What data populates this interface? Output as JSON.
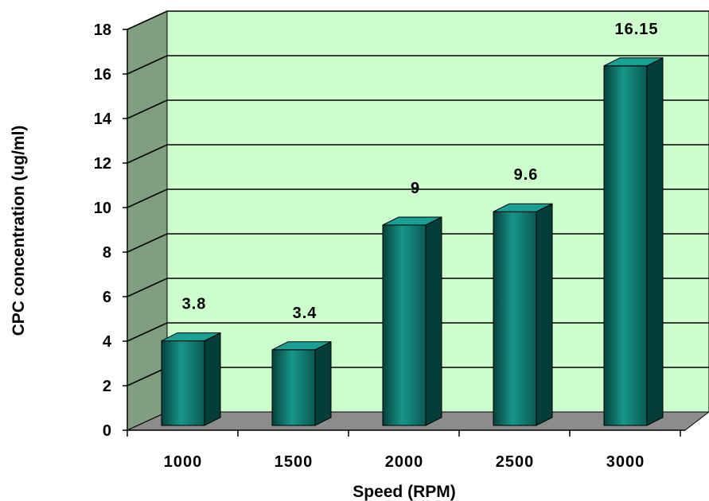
{
  "chart_data": {
    "type": "bar",
    "categories": [
      "1000",
      "1500",
      "2000",
      "2500",
      "3000"
    ],
    "values": [
      3.8,
      3.4,
      9,
      9.6,
      16.15
    ],
    "data_labels": [
      "3.8",
      "3.4",
      "9",
      "9.6",
      "16.15"
    ],
    "title": "",
    "xlabel": "Speed (RPM)",
    "ylabel": "CPC concentration (ug/ml)",
    "ylim": [
      0,
      18
    ],
    "yticks": [
      0,
      2,
      4,
      6,
      8,
      10,
      12,
      14,
      16,
      18
    ],
    "grid": true,
    "style": "3d-column",
    "colors": {
      "bar_front": "#0d7c72",
      "bar_top": "#19a095",
      "bar_side": "#053d38",
      "back_wall": "#ccffcc",
      "side_wall": "#7f9f80",
      "floor": "#8c8c8c",
      "gridline": "#000000"
    }
  }
}
